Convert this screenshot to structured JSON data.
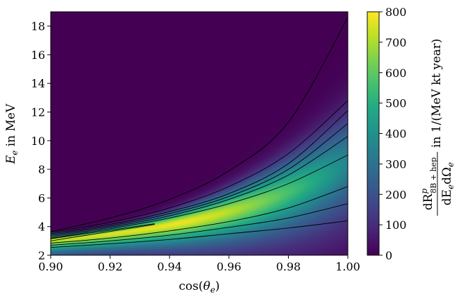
{
  "chart_data": {
    "type": "heatmap",
    "title": "",
    "xlabel_parts": {
      "pre": "cos(",
      "sym": "θ",
      "sub": "e",
      "post": ")"
    },
    "ylabel_parts": {
      "sym": "E",
      "sub": "e",
      "post": " in MeV"
    },
    "colorbar_label_parts": {
      "num": "dR",
      "num_sup": "p",
      "num_sub": "8B + hep",
      "den": "dE",
      "den_sub1": "e",
      "den_mid": "dΩ",
      "den_sub2": "e",
      "unit": " in 1/(MeV kt year)"
    },
    "xlim": [
      0.9,
      1.0
    ],
    "ylim": [
      2,
      19
    ],
    "x_ticks": [
      "0.90",
      "0.92",
      "0.94",
      "0.96",
      "0.98",
      "1.00"
    ],
    "y_ticks": [
      "2",
      "4",
      "6",
      "8",
      "10",
      "12",
      "14",
      "16",
      "18"
    ],
    "colorbar": {
      "colormap": "viridis",
      "range": [
        0,
        800
      ],
      "ticks": [
        "0",
        "100",
        "200",
        "300",
        "400",
        "500",
        "600",
        "700",
        "800"
      ]
    },
    "ridge": {
      "x_start": 0.9,
      "e_start": 3.05,
      "e_end": 8.3,
      "exp_rate": 1.9
    },
    "contours": [
      {
        "x": [
          0.9,
          0.92,
          0.94,
          0.96,
          0.98,
          1.0
        ],
        "y": [
          2.55,
          2.8,
          3.1,
          3.5,
          3.9,
          4.4
        ]
      },
      {
        "x": [
          0.9,
          0.92,
          0.94,
          0.96,
          0.98,
          1.0
        ],
        "y": [
          2.7,
          3.0,
          3.4,
          3.95,
          4.6,
          5.6
        ]
      },
      {
        "x": [
          0.9,
          0.92,
          0.94,
          0.96,
          0.98,
          1.0
        ],
        "y": [
          2.85,
          3.2,
          3.7,
          4.35,
          5.3,
          6.8
        ]
      },
      {
        "x": [
          0.9,
          0.935
        ],
        "y": [
          3.0,
          4.15
        ]
      },
      {
        "x": [
          0.9,
          0.935
        ],
        "y": [
          3.15,
          4.2
        ]
      },
      {
        "x": [
          0.9,
          0.92,
          0.94,
          0.96,
          0.98,
          1.0
        ],
        "y": [
          3.2,
          3.85,
          4.6,
          5.6,
          7.0,
          9.0
        ]
      },
      {
        "x": [
          0.9,
          0.92,
          0.94,
          0.96,
          0.98,
          1.0
        ],
        "y": [
          3.3,
          3.95,
          4.75,
          5.9,
          7.6,
          10.3
        ]
      },
      {
        "x": [
          0.9,
          0.92,
          0.94,
          0.96,
          0.98,
          1.0
        ],
        "y": [
          3.4,
          4.05,
          4.9,
          6.1,
          8.0,
          11.2
        ]
      },
      {
        "x": [
          0.9,
          0.92,
          0.94,
          0.96,
          0.98,
          1.0
        ],
        "y": [
          3.5,
          4.15,
          5.05,
          6.3,
          8.4,
          12.1
        ]
      },
      {
        "x": [
          0.9,
          0.92,
          0.94,
          0.96,
          0.98,
          1.0
        ],
        "y": [
          3.6,
          4.3,
          5.3,
          6.8,
          9.1,
          12.8
        ]
      },
      {
        "x": [
          0.9,
          0.92,
          0.94,
          0.96,
          0.98,
          1.0
        ],
        "y": [
          3.65,
          4.6,
          5.9,
          7.9,
          11.3,
          18.6
        ]
      }
    ]
  }
}
